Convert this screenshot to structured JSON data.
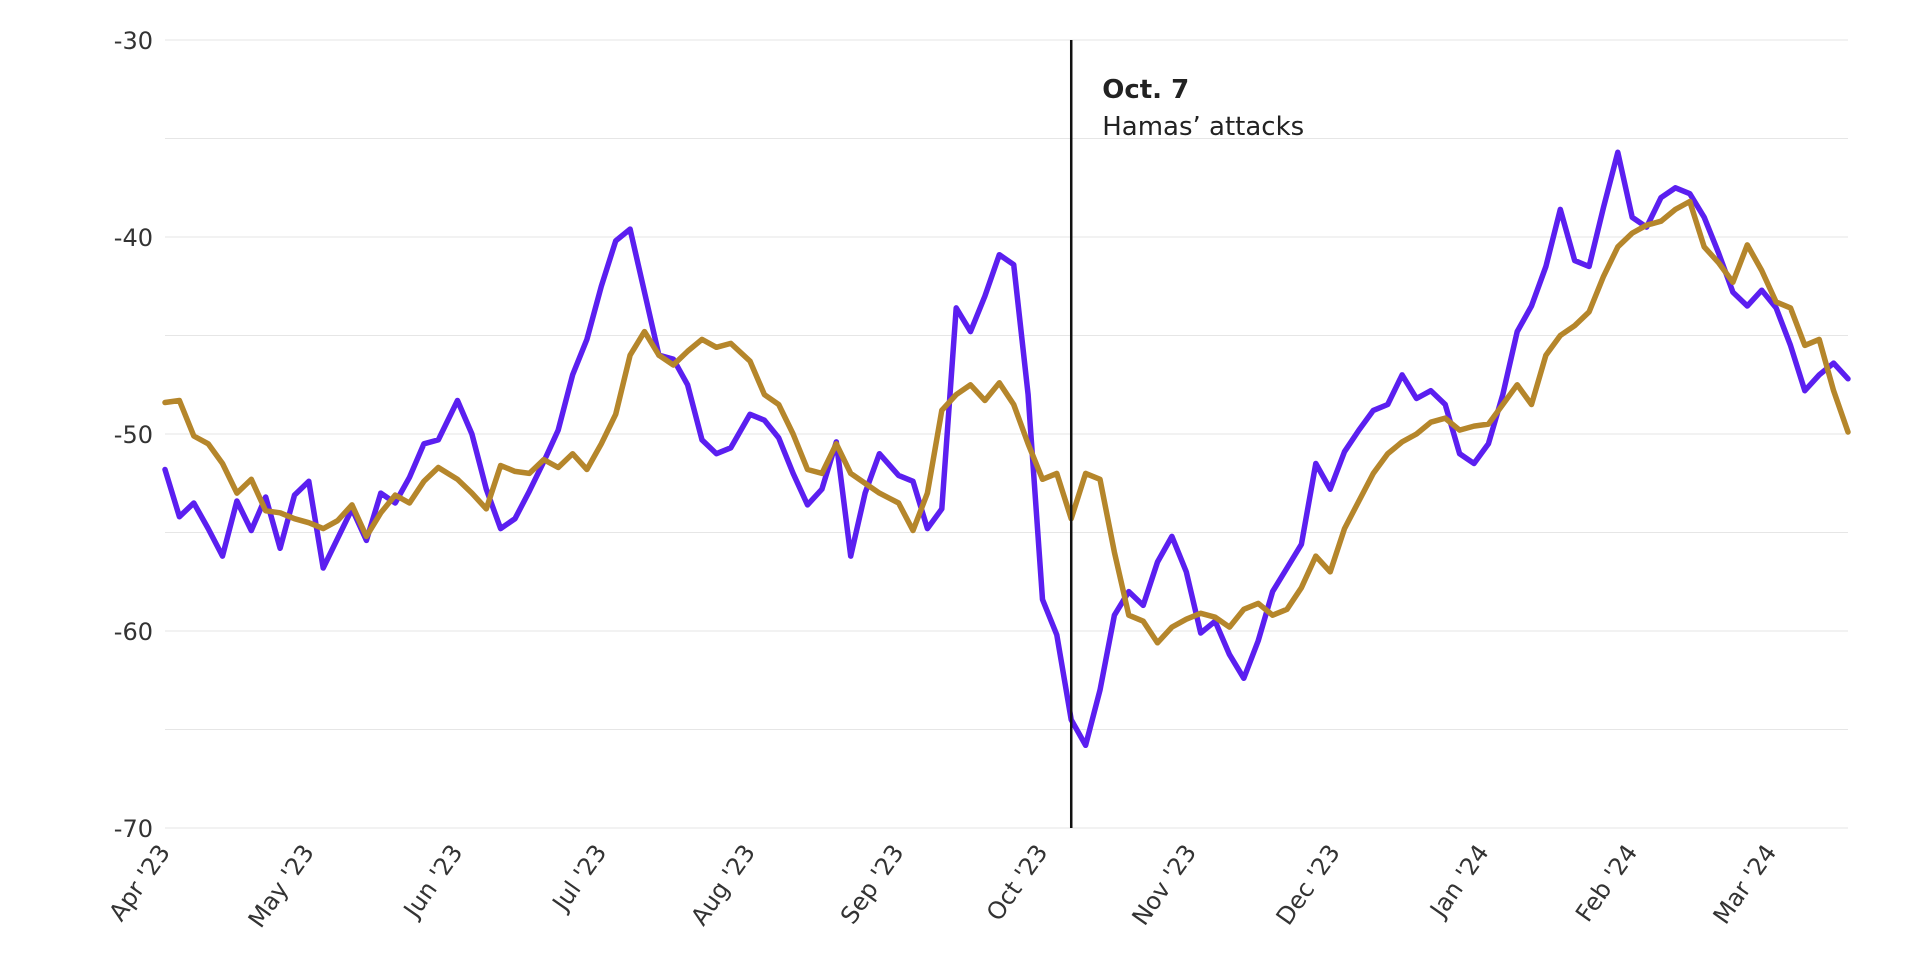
{
  "chart_data": {
    "type": "line",
    "title": "",
    "xlabel": "",
    "ylabel": "",
    "ylim": [
      -70,
      -30
    ],
    "yticks": [
      -30,
      -40,
      -50,
      -60,
      -70
    ],
    "grid": true,
    "x_start": "2023-04-01",
    "x_end": "2024-03-17",
    "x_ticks": [
      {
        "label": "Apr '23",
        "date": "2023-04-01"
      },
      {
        "label": "May '23",
        "date": "2023-05-01"
      },
      {
        "label": "Jun '23",
        "date": "2023-06-01"
      },
      {
        "label": "Jul '23",
        "date": "2023-07-01"
      },
      {
        "label": "Aug '23",
        "date": "2023-08-01"
      },
      {
        "label": "Sep '23",
        "date": "2023-09-01"
      },
      {
        "label": "Oct '23",
        "date": "2023-10-01"
      },
      {
        "label": "Nov '23",
        "date": "2023-11-01"
      },
      {
        "label": "Dec '23",
        "date": "2023-12-01"
      },
      {
        "label": "Jan '24",
        "date": "2024-01-01"
      },
      {
        "label": "Feb '24",
        "date": "2024-02-01"
      },
      {
        "label": "Mar '24",
        "date": "2024-03-01"
      }
    ],
    "annotation": {
      "date": "2023-10-07",
      "title": "Oct. 7",
      "text": "Hamas’ attacks"
    },
    "series": [
      {
        "color": "#5b1ff0",
        "points": [
          [
            "2023-04-01",
            -51.8
          ],
          [
            "2023-04-04",
            -54.2
          ],
          [
            "2023-04-07",
            -53.5
          ],
          [
            "2023-04-10",
            -54.8
          ],
          [
            "2023-04-13",
            -56.2
          ],
          [
            "2023-04-16",
            -53.4
          ],
          [
            "2023-04-19",
            -54.9
          ],
          [
            "2023-04-22",
            -53.2
          ],
          [
            "2023-04-25",
            -55.8
          ],
          [
            "2023-04-28",
            -53.1
          ],
          [
            "2023-05-01",
            -52.4
          ],
          [
            "2023-05-04",
            -56.8
          ],
          [
            "2023-05-07",
            -55.3
          ],
          [
            "2023-05-10",
            -53.8
          ],
          [
            "2023-05-13",
            -55.4
          ],
          [
            "2023-05-16",
            -53.0
          ],
          [
            "2023-05-19",
            -53.5
          ],
          [
            "2023-05-22",
            -52.2
          ],
          [
            "2023-05-25",
            -50.5
          ],
          [
            "2023-05-28",
            -50.3
          ],
          [
            "2023-06-01",
            -48.3
          ],
          [
            "2023-06-04",
            -50.0
          ],
          [
            "2023-06-07",
            -52.8
          ],
          [
            "2023-06-10",
            -54.8
          ],
          [
            "2023-06-13",
            -54.3
          ],
          [
            "2023-06-16",
            -52.9
          ],
          [
            "2023-06-19",
            -51.4
          ],
          [
            "2023-06-22",
            -49.8
          ],
          [
            "2023-06-25",
            -47.0
          ],
          [
            "2023-06-28",
            -45.2
          ],
          [
            "2023-07-01",
            -42.5
          ],
          [
            "2023-07-04",
            -40.2
          ],
          [
            "2023-07-07",
            -39.6
          ],
          [
            "2023-07-10",
            -42.8
          ],
          [
            "2023-07-13",
            -46.0
          ],
          [
            "2023-07-16",
            -46.2
          ],
          [
            "2023-07-19",
            -47.5
          ],
          [
            "2023-07-22",
            -50.3
          ],
          [
            "2023-07-25",
            -51.0
          ],
          [
            "2023-07-28",
            -50.7
          ],
          [
            "2023-08-01",
            -49.0
          ],
          [
            "2023-08-04",
            -49.3
          ],
          [
            "2023-08-07",
            -50.2
          ],
          [
            "2023-08-10",
            -52.0
          ],
          [
            "2023-08-13",
            -53.6
          ],
          [
            "2023-08-16",
            -52.8
          ],
          [
            "2023-08-19",
            -50.4
          ],
          [
            "2023-08-22",
            -56.2
          ],
          [
            "2023-08-25",
            -53.0
          ],
          [
            "2023-08-28",
            -51.0
          ],
          [
            "2023-09-01",
            -52.1
          ],
          [
            "2023-09-04",
            -52.4
          ],
          [
            "2023-09-07",
            -54.8
          ],
          [
            "2023-09-10",
            -53.8
          ],
          [
            "2023-09-13",
            -43.6
          ],
          [
            "2023-09-16",
            -44.8
          ],
          [
            "2023-09-19",
            -43.0
          ],
          [
            "2023-09-22",
            -40.9
          ],
          [
            "2023-09-25",
            -41.4
          ],
          [
            "2023-09-28",
            -48.0
          ],
          [
            "2023-10-01",
            -58.4
          ],
          [
            "2023-10-04",
            -60.2
          ],
          [
            "2023-10-07",
            -64.5
          ],
          [
            "2023-10-10",
            -65.8
          ],
          [
            "2023-10-13",
            -63.0
          ],
          [
            "2023-10-16",
            -59.2
          ],
          [
            "2023-10-19",
            -58.0
          ],
          [
            "2023-10-22",
            -58.7
          ],
          [
            "2023-10-25",
            -56.5
          ],
          [
            "2023-10-28",
            -55.2
          ],
          [
            "2023-10-31",
            -57.0
          ],
          [
            "2023-11-03",
            -60.1
          ],
          [
            "2023-11-06",
            -59.5
          ],
          [
            "2023-11-09",
            -61.2
          ],
          [
            "2023-11-12",
            -62.4
          ],
          [
            "2023-11-15",
            -60.5
          ],
          [
            "2023-11-18",
            -58.0
          ],
          [
            "2023-11-21",
            -56.8
          ],
          [
            "2023-11-24",
            -55.6
          ],
          [
            "2023-11-27",
            -51.5
          ],
          [
            "2023-11-30",
            -52.8
          ],
          [
            "2023-12-03",
            -50.9
          ],
          [
            "2023-12-06",
            -49.8
          ],
          [
            "2023-12-09",
            -48.8
          ],
          [
            "2023-12-12",
            -48.5
          ],
          [
            "2023-12-15",
            -47.0
          ],
          [
            "2023-12-18",
            -48.2
          ],
          [
            "2023-12-21",
            -47.8
          ],
          [
            "2023-12-24",
            -48.5
          ],
          [
            "2023-12-27",
            -51.0
          ],
          [
            "2023-12-30",
            -51.5
          ],
          [
            "2024-01-02",
            -50.5
          ],
          [
            "2024-01-05",
            -48.0
          ],
          [
            "2024-01-08",
            -44.8
          ],
          [
            "2024-01-11",
            -43.5
          ],
          [
            "2024-01-14",
            -41.5
          ],
          [
            "2024-01-17",
            -38.6
          ],
          [
            "2024-01-20",
            -41.2
          ],
          [
            "2024-01-23",
            -41.5
          ],
          [
            "2024-01-26",
            -38.5
          ],
          [
            "2024-01-29",
            -35.7
          ],
          [
            "2024-02-01",
            -39.0
          ],
          [
            "2024-02-04",
            -39.5
          ],
          [
            "2024-02-07",
            -38.0
          ],
          [
            "2024-02-10",
            -37.5
          ],
          [
            "2024-02-13",
            -37.8
          ],
          [
            "2024-02-16",
            -39.0
          ],
          [
            "2024-02-19",
            -40.8
          ],
          [
            "2024-02-22",
            -42.8
          ],
          [
            "2024-02-25",
            -43.5
          ],
          [
            "2024-02-28",
            -42.7
          ],
          [
            "2024-03-02",
            -43.6
          ],
          [
            "2024-03-05",
            -45.5
          ],
          [
            "2024-03-08",
            -47.8
          ],
          [
            "2024-03-11",
            -47.0
          ],
          [
            "2024-03-14",
            -46.4
          ],
          [
            "2024-03-17",
            -47.2
          ]
        ]
      },
      {
        "color": "#b5862b",
        "points": [
          [
            "2023-04-01",
            -48.4
          ],
          [
            "2023-04-04",
            -48.3
          ],
          [
            "2023-04-07",
            -50.1
          ],
          [
            "2023-04-10",
            -50.5
          ],
          [
            "2023-04-13",
            -51.5
          ],
          [
            "2023-04-16",
            -53.0
          ],
          [
            "2023-04-19",
            -52.3
          ],
          [
            "2023-04-22",
            -53.9
          ],
          [
            "2023-04-25",
            -54.0
          ],
          [
            "2023-04-28",
            -54.3
          ],
          [
            "2023-05-01",
            -54.5
          ],
          [
            "2023-05-04",
            -54.8
          ],
          [
            "2023-05-07",
            -54.4
          ],
          [
            "2023-05-10",
            -53.6
          ],
          [
            "2023-05-13",
            -55.2
          ],
          [
            "2023-05-16",
            -54.0
          ],
          [
            "2023-05-19",
            -53.1
          ],
          [
            "2023-05-22",
            -53.5
          ],
          [
            "2023-05-25",
            -52.4
          ],
          [
            "2023-05-28",
            -51.7
          ],
          [
            "2023-06-01",
            -52.3
          ],
          [
            "2023-06-04",
            -53.0
          ],
          [
            "2023-06-07",
            -53.8
          ],
          [
            "2023-06-10",
            -51.6
          ],
          [
            "2023-06-13",
            -51.9
          ],
          [
            "2023-06-16",
            -52.0
          ],
          [
            "2023-06-19",
            -51.3
          ],
          [
            "2023-06-22",
            -51.7
          ],
          [
            "2023-06-25",
            -51.0
          ],
          [
            "2023-06-28",
            -51.8
          ],
          [
            "2023-07-01",
            -50.5
          ],
          [
            "2023-07-04",
            -49.0
          ],
          [
            "2023-07-07",
            -46.0
          ],
          [
            "2023-07-10",
            -44.8
          ],
          [
            "2023-07-13",
            -46.0
          ],
          [
            "2023-07-16",
            -46.5
          ],
          [
            "2023-07-19",
            -45.8
          ],
          [
            "2023-07-22",
            -45.2
          ],
          [
            "2023-07-25",
            -45.6
          ],
          [
            "2023-07-28",
            -45.4
          ],
          [
            "2023-08-01",
            -46.3
          ],
          [
            "2023-08-04",
            -48.0
          ],
          [
            "2023-08-07",
            -48.5
          ],
          [
            "2023-08-10",
            -50.0
          ],
          [
            "2023-08-13",
            -51.8
          ],
          [
            "2023-08-16",
            -52.0
          ],
          [
            "2023-08-19",
            -50.5
          ],
          [
            "2023-08-22",
            -52.0
          ],
          [
            "2023-08-25",
            -52.5
          ],
          [
            "2023-08-28",
            -53.0
          ],
          [
            "2023-09-01",
            -53.5
          ],
          [
            "2023-09-04",
            -54.9
          ],
          [
            "2023-09-07",
            -53.0
          ],
          [
            "2023-09-10",
            -48.8
          ],
          [
            "2023-09-13",
            -48.0
          ],
          [
            "2023-09-16",
            -47.5
          ],
          [
            "2023-09-19",
            -48.3
          ],
          [
            "2023-09-22",
            -47.4
          ],
          [
            "2023-09-25",
            -48.5
          ],
          [
            "2023-09-28",
            -50.5
          ],
          [
            "2023-10-01",
            -52.3
          ],
          [
            "2023-10-04",
            -52.0
          ],
          [
            "2023-10-07",
            -54.3
          ],
          [
            "2023-10-10",
            -52.0
          ],
          [
            "2023-10-13",
            -52.3
          ],
          [
            "2023-10-16",
            -56.0
          ],
          [
            "2023-10-19",
            -59.2
          ],
          [
            "2023-10-22",
            -59.5
          ],
          [
            "2023-10-25",
            -60.6
          ],
          [
            "2023-10-28",
            -59.8
          ],
          [
            "2023-10-31",
            -59.4
          ],
          [
            "2023-11-03",
            -59.1
          ],
          [
            "2023-11-06",
            -59.3
          ],
          [
            "2023-11-09",
            -59.8
          ],
          [
            "2023-11-12",
            -58.9
          ],
          [
            "2023-11-15",
            -58.6
          ],
          [
            "2023-11-18",
            -59.2
          ],
          [
            "2023-11-21",
            -58.9
          ],
          [
            "2023-11-24",
            -57.8
          ],
          [
            "2023-11-27",
            -56.2
          ],
          [
            "2023-11-30",
            -57.0
          ],
          [
            "2023-12-03",
            -54.8
          ],
          [
            "2023-12-06",
            -53.4
          ],
          [
            "2023-12-09",
            -52.0
          ],
          [
            "2023-12-12",
            -51.0
          ],
          [
            "2023-12-15",
            -50.4
          ],
          [
            "2023-12-18",
            -50.0
          ],
          [
            "2023-12-21",
            -49.4
          ],
          [
            "2023-12-24",
            -49.2
          ],
          [
            "2023-12-27",
            -49.8
          ],
          [
            "2023-12-30",
            -49.6
          ],
          [
            "2024-01-02",
            -49.5
          ],
          [
            "2024-01-05",
            -48.5
          ],
          [
            "2024-01-08",
            -47.5
          ],
          [
            "2024-01-11",
            -48.5
          ],
          [
            "2024-01-14",
            -46.0
          ],
          [
            "2024-01-17",
            -45.0
          ],
          [
            "2024-01-20",
            -44.5
          ],
          [
            "2024-01-23",
            -43.8
          ],
          [
            "2024-01-26",
            -42.0
          ],
          [
            "2024-01-29",
            -40.5
          ],
          [
            "2024-02-01",
            -39.8
          ],
          [
            "2024-02-04",
            -39.4
          ],
          [
            "2024-02-07",
            -39.2
          ],
          [
            "2024-02-10",
            -38.6
          ],
          [
            "2024-02-13",
            -38.2
          ],
          [
            "2024-02-16",
            -40.5
          ],
          [
            "2024-02-19",
            -41.3
          ],
          [
            "2024-02-22",
            -42.3
          ],
          [
            "2024-02-25",
            -40.4
          ],
          [
            "2024-02-28",
            -41.7
          ],
          [
            "2024-03-02",
            -43.3
          ],
          [
            "2024-03-05",
            -43.6
          ],
          [
            "2024-03-08",
            -45.5
          ],
          [
            "2024-03-11",
            -45.2
          ],
          [
            "2024-03-14",
            -47.8
          ],
          [
            "2024-03-17",
            -49.9
          ]
        ]
      }
    ]
  }
}
